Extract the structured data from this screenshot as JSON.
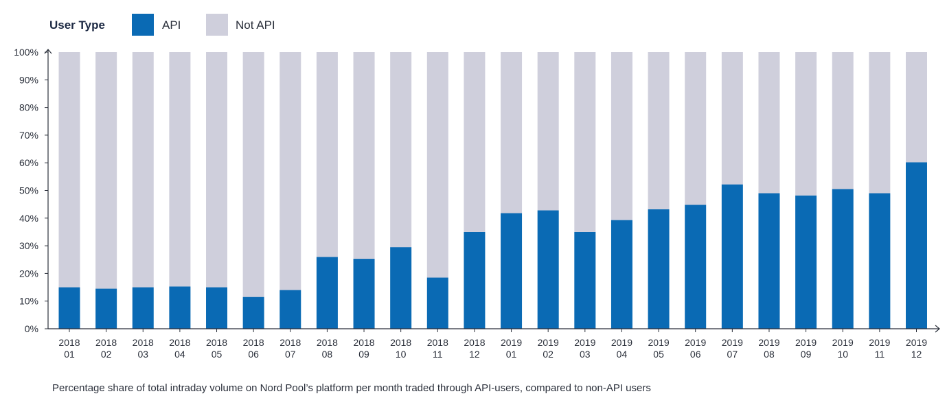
{
  "chart_data": {
    "type": "bar",
    "stacked": true,
    "percent_stacked": true,
    "legend": {
      "title": "User Type",
      "placement": "top-left",
      "items": [
        {
          "label": "API",
          "color": "#0a6ab4"
        },
        {
          "label": "Not API",
          "color": "#cfcfdc"
        }
      ]
    },
    "categories": [
      [
        "2018",
        "01"
      ],
      [
        "2018",
        "02"
      ],
      [
        "2018",
        "03"
      ],
      [
        "2018",
        "04"
      ],
      [
        "2018",
        "05"
      ],
      [
        "2018",
        "06"
      ],
      [
        "2018",
        "07"
      ],
      [
        "2018",
        "08"
      ],
      [
        "2018",
        "09"
      ],
      [
        "2018",
        "10"
      ],
      [
        "2018",
        "11"
      ],
      [
        "2018",
        "12"
      ],
      [
        "2019",
        "01"
      ],
      [
        "2019",
        "02"
      ],
      [
        "2019",
        "03"
      ],
      [
        "2019",
        "04"
      ],
      [
        "2019",
        "05"
      ],
      [
        "2019",
        "06"
      ],
      [
        "2019",
        "07"
      ],
      [
        "2019",
        "08"
      ],
      [
        "2019",
        "09"
      ],
      [
        "2019",
        "10"
      ],
      [
        "2019",
        "11"
      ],
      [
        "2019",
        "12"
      ]
    ],
    "series": [
      {
        "name": "API",
        "color": "#0a6ab4",
        "values": [
          15,
          14.5,
          15,
          15.3,
          15,
          11.5,
          14,
          26,
          25.3,
          29.5,
          18.5,
          35,
          41.8,
          42.8,
          35,
          39.3,
          43.2,
          44.8,
          52.2,
          49,
          48.2,
          50.5,
          49,
          60.2
        ]
      },
      {
        "name": "Not API",
        "color": "#cfcfdc",
        "values": [
          85,
          85.5,
          85,
          84.7,
          85,
          88.5,
          86,
          74,
          74.7,
          70.5,
          81.5,
          65,
          58.2,
          57.2,
          65,
          60.7,
          56.8,
          55.2,
          47.8,
          51,
          51.8,
          49.5,
          51,
          39.8
        ]
      }
    ],
    "ylim": [
      0,
      100
    ],
    "yticks": [
      "0%",
      "10%",
      "20%",
      "30%",
      "40%",
      "50%",
      "60%",
      "70%",
      "80%",
      "90%",
      "100%"
    ],
    "grid": false,
    "caption": "Percentage share of total intraday volume on Nord Pool’s platform per month traded through API-users, compared to non-API users"
  }
}
